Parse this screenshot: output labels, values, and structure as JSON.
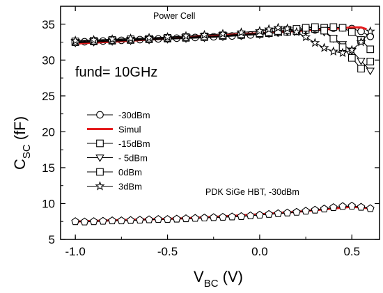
{
  "chart_data": {
    "type": "scatter",
    "xlabel": {
      "main": "V",
      "sub": "BC",
      "unit": " (V)"
    },
    "ylabel": {
      "main": "C",
      "sub": "SC",
      "unit": " (fF)"
    },
    "xlim": [
      -1.08,
      0.65
    ],
    "ylim": [
      5,
      37.5
    ],
    "xticks": [
      -1.0,
      -0.5,
      0.0,
      0.5
    ],
    "xtick_labels": [
      "-1.0",
      "-0.5",
      "0.0",
      "0.5"
    ],
    "yticks": [
      5,
      10,
      15,
      20,
      25,
      30,
      35
    ],
    "ytick_labels": [
      "5",
      "10",
      "15",
      "20",
      "25",
      "30",
      "35"
    ],
    "grid": false,
    "legend_position": "center-left",
    "annotations": {
      "top": "Power Cell",
      "fund": "fund= 10GHz",
      "bottom": "PDK SiGe HBT, -30dBm"
    },
    "series": [
      {
        "name": "-30dBm",
        "marker": "circle",
        "color": "#000000",
        "x": [
          -1.0,
          -0.95,
          -0.9,
          -0.85,
          -0.8,
          -0.75,
          -0.7,
          -0.65,
          -0.6,
          -0.55,
          -0.5,
          -0.45,
          -0.4,
          -0.35,
          -0.3,
          -0.25,
          -0.2,
          -0.15,
          -0.1,
          -0.05,
          0.0,
          0.05,
          0.1,
          0.15,
          0.2,
          0.25,
          0.3,
          0.35,
          0.4,
          0.45,
          0.5,
          0.55,
          0.6
        ],
        "y": [
          32.5,
          32.55,
          32.6,
          32.65,
          32.7,
          32.75,
          32.8,
          32.85,
          32.9,
          32.95,
          33.0,
          33.05,
          33.1,
          33.15,
          33.2,
          33.25,
          33.3,
          33.35,
          33.4,
          33.5,
          33.6,
          33.7,
          33.8,
          33.9,
          34.0,
          34.1,
          34.2,
          34.3,
          34.45,
          34.5,
          34.4,
          34.0,
          33.3
        ]
      },
      {
        "name": "Simul",
        "marker": "none",
        "color": "#e41a1c",
        "x": [
          -1.0,
          -0.8,
          -0.6,
          -0.4,
          -0.2,
          0.0,
          0.1,
          0.2,
          0.3,
          0.4,
          0.5,
          0.55,
          0.58
        ],
        "y": [
          32.3,
          32.55,
          32.85,
          33.15,
          33.45,
          33.75,
          33.9,
          34.05,
          34.2,
          34.35,
          34.55,
          34.55,
          34.3
        ]
      },
      {
        "name": "-15dBm",
        "marker": "square",
        "color": "#000000",
        "x": [
          -1.0,
          -0.9,
          -0.8,
          -0.7,
          -0.6,
          -0.5,
          -0.4,
          -0.3,
          -0.2,
          -0.1,
          0.0,
          0.05,
          0.1,
          0.15,
          0.2,
          0.25,
          0.3,
          0.35,
          0.4,
          0.45,
          0.5,
          0.55,
          0.6
        ],
        "y": [
          32.5,
          32.6,
          32.7,
          32.8,
          32.9,
          33.0,
          33.1,
          33.2,
          33.35,
          33.5,
          33.65,
          33.75,
          33.85,
          33.95,
          34.05,
          34.2,
          34.35,
          34.5,
          34.6,
          34.5,
          33.9,
          32.8,
          31.5
        ]
      },
      {
        "name": "- 5dBm",
        "marker": "triangle-down",
        "color": "#000000",
        "x": [
          -1.0,
          -0.9,
          -0.8,
          -0.7,
          -0.6,
          -0.5,
          -0.4,
          -0.3,
          -0.2,
          -0.1,
          0.0,
          0.05,
          0.1,
          0.15,
          0.2,
          0.25,
          0.3,
          0.35,
          0.4,
          0.45,
          0.5,
          0.55,
          0.6
        ],
        "y": [
          32.4,
          32.5,
          32.6,
          32.7,
          32.8,
          32.9,
          33.0,
          33.1,
          33.25,
          33.4,
          33.55,
          33.7,
          33.85,
          34.0,
          34.15,
          34.3,
          34.3,
          33.9,
          33.0,
          32.2,
          31.3,
          29.9,
          28.5
        ]
      },
      {
        "name": "  0dBm",
        "marker": "square",
        "color": "#000000",
        "x": [
          -1.0,
          -0.9,
          -0.8,
          -0.7,
          -0.6,
          -0.5,
          -0.4,
          -0.3,
          -0.2,
          -0.1,
          0.0,
          0.05,
          0.1,
          0.15,
          0.2,
          0.25,
          0.3,
          0.35,
          0.4,
          0.45,
          0.5,
          0.55,
          0.6
        ],
        "y": [
          32.6,
          32.7,
          32.8,
          32.9,
          33.0,
          33.1,
          33.2,
          33.3,
          33.45,
          33.6,
          33.75,
          33.9,
          34.05,
          34.2,
          34.35,
          34.5,
          34.6,
          34.1,
          33.0,
          31.8,
          30.3,
          28.8,
          29.8
        ]
      },
      {
        "name": "3dBm",
        "marker": "star",
        "color": "#000000",
        "x": [
          -1.0,
          -0.9,
          -0.8,
          -0.7,
          -0.6,
          -0.5,
          -0.4,
          -0.3,
          -0.2,
          -0.1,
          0.0,
          0.05,
          0.1,
          0.15,
          0.2,
          0.25,
          0.3,
          0.35,
          0.4,
          0.45,
          0.5,
          0.55,
          0.6
        ],
        "y": [
          32.7,
          32.8,
          32.9,
          33.0,
          33.1,
          33.2,
          33.35,
          33.5,
          33.65,
          33.85,
          34.05,
          34.3,
          34.5,
          34.4,
          33.9,
          33.2,
          32.4,
          31.7,
          31.2,
          31.0,
          31.4,
          32.5,
          34.0
        ]
      },
      {
        "name": "PDK SiGe HBT, -30dBm (model)",
        "marker": "none",
        "color": "#e41a1c",
        "x": [
          -1.0,
          -0.8,
          -0.6,
          -0.4,
          -0.2,
          0.0,
          0.2,
          0.4,
          0.5,
          0.55,
          0.6
        ],
        "y": [
          7.5,
          7.65,
          7.8,
          7.95,
          8.2,
          8.5,
          8.85,
          9.3,
          9.55,
          9.45,
          9.3
        ]
      },
      {
        "name": "PDK SiGe HBT, -30dBm (meas)",
        "marker": "pentagon",
        "color": "#000000",
        "x": [
          -1.0,
          -0.95,
          -0.9,
          -0.85,
          -0.8,
          -0.75,
          -0.7,
          -0.65,
          -0.6,
          -0.55,
          -0.5,
          -0.45,
          -0.4,
          -0.35,
          -0.3,
          -0.25,
          -0.2,
          -0.15,
          -0.1,
          -0.05,
          0.0,
          0.05,
          0.1,
          0.15,
          0.2,
          0.25,
          0.3,
          0.35,
          0.4,
          0.45,
          0.5,
          0.55,
          0.6
        ],
        "y": [
          7.5,
          7.45,
          7.5,
          7.55,
          7.6,
          7.6,
          7.65,
          7.7,
          7.75,
          7.8,
          7.8,
          7.85,
          7.9,
          7.95,
          8.0,
          8.05,
          8.1,
          8.15,
          8.2,
          8.3,
          8.4,
          8.5,
          8.6,
          8.7,
          8.8,
          8.95,
          9.1,
          9.25,
          9.45,
          9.6,
          9.65,
          9.5,
          9.3
        ]
      }
    ],
    "legend_entries": [
      {
        "label": "-30dBm",
        "marker": "circle",
        "line": "#000000"
      },
      {
        "label": "Simul",
        "marker": "none",
        "line": "#e41a1c"
      },
      {
        "label": "-15dBm",
        "marker": "square",
        "line": "#000000"
      },
      {
        "label": "- 5dBm",
        "marker": "triangle-down",
        "line": "#000000"
      },
      {
        "label": "  0dBm",
        "marker": "square",
        "line": "#000000"
      },
      {
        "label": "3dBm",
        "marker": "star",
        "line": "#000000"
      }
    ]
  }
}
